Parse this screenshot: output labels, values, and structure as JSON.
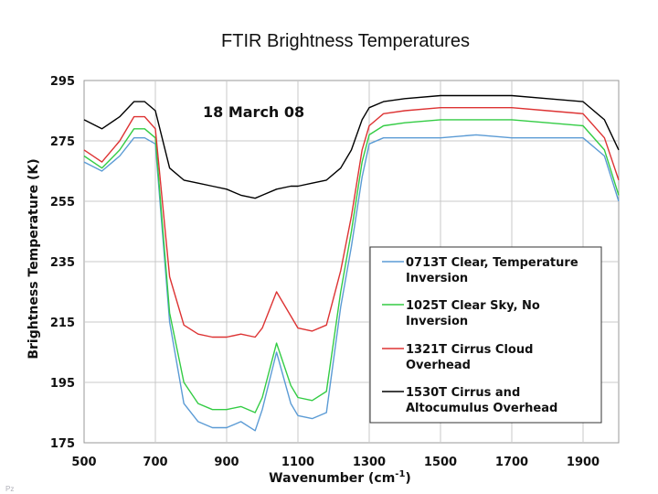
{
  "slide": {
    "title": "FTIR Brightness Temperatures",
    "footer": "Pz"
  },
  "chart_data": {
    "type": "line",
    "title": "",
    "annotation": "18 March 08",
    "xlabel": "Wavenumber (cm",
    "xlabel_sup": "-1",
    "xlabel_tail": ")",
    "ylabel": "Brightness Temperature (K)",
    "xlim": [
      500,
      2000
    ],
    "ylim": [
      175,
      295
    ],
    "xticks": [
      500,
      700,
      900,
      1100,
      1300,
      1500,
      1700,
      1900
    ],
    "yticks": [
      175,
      195,
      215,
      235,
      255,
      275,
      295
    ],
    "grid": true,
    "legend_position": "bottom-right",
    "series": [
      {
        "name": "0713T Clear, Temperature Inversion",
        "legend_lines": [
          "0713T Clear, Temperature",
          "Inversion"
        ],
        "color": "#5b9bd5",
        "x": [
          500,
          550,
          600,
          640,
          670,
          700,
          740,
          780,
          820,
          860,
          900,
          940,
          980,
          1000,
          1040,
          1080,
          1100,
          1140,
          1180,
          1220,
          1250,
          1280,
          1300,
          1340,
          1400,
          1500,
          1600,
          1700,
          1800,
          1900,
          1960,
          2000
        ],
        "y": [
          268,
          265,
          270,
          276,
          276,
          274,
          215,
          188,
          182,
          180,
          180,
          182,
          179,
          186,
          205,
          188,
          184,
          183,
          185,
          220,
          240,
          263,
          274,
          276,
          276,
          276,
          277,
          276,
          276,
          276,
          270,
          255
        ]
      },
      {
        "name": "1025T Clear Sky, No Inversion",
        "legend_lines": [
          "1025T Clear Sky, No",
          "Inversion"
        ],
        "color": "#33cc44",
        "x": [
          500,
          550,
          600,
          640,
          670,
          700,
          740,
          780,
          820,
          860,
          900,
          940,
          980,
          1000,
          1040,
          1080,
          1100,
          1140,
          1180,
          1220,
          1250,
          1280,
          1300,
          1340,
          1400,
          1500,
          1600,
          1700,
          1800,
          1900,
          1960,
          2000
        ],
        "y": [
          270,
          266,
          272,
          279,
          279,
          276,
          218,
          195,
          188,
          186,
          186,
          187,
          185,
          190,
          208,
          194,
          190,
          189,
          192,
          225,
          245,
          268,
          277,
          280,
          281,
          282,
          282,
          282,
          281,
          280,
          272,
          257
        ]
      },
      {
        "name": "1321T Cirrus Cloud Overhead",
        "legend_lines": [
          "1321T Cirrus Cloud",
          "Overhead"
        ],
        "color": "#dd3333",
        "x": [
          500,
          550,
          600,
          640,
          670,
          700,
          740,
          780,
          820,
          860,
          900,
          940,
          980,
          1000,
          1040,
          1080,
          1100,
          1140,
          1180,
          1220,
          1250,
          1280,
          1300,
          1340,
          1400,
          1500,
          1600,
          1700,
          1800,
          1900,
          1960,
          2000
        ],
        "y": [
          272,
          268,
          275,
          283,
          283,
          279,
          230,
          214,
          211,
          210,
          210,
          211,
          210,
          213,
          225,
          217,
          213,
          212,
          214,
          232,
          250,
          272,
          280,
          284,
          285,
          286,
          286,
          286,
          285,
          284,
          276,
          262
        ]
      },
      {
        "name": "1530T Cirrus and Altocumulus Overhead",
        "legend_lines": [
          "1530T Cirrus and",
          "Altocumulus Overhead"
        ],
        "color": "#000000",
        "x": [
          500,
          550,
          600,
          640,
          670,
          700,
          740,
          780,
          820,
          860,
          900,
          940,
          980,
          1000,
          1040,
          1080,
          1100,
          1140,
          1180,
          1220,
          1250,
          1280,
          1300,
          1340,
          1400,
          1500,
          1600,
          1700,
          1800,
          1900,
          1960,
          2000
        ],
        "y": [
          282,
          279,
          283,
          288,
          288,
          285,
          266,
          262,
          261,
          260,
          259,
          257,
          256,
          257,
          259,
          260,
          260,
          261,
          262,
          266,
          272,
          282,
          286,
          288,
          289,
          290,
          290,
          290,
          289,
          288,
          282,
          272
        ]
      }
    ]
  }
}
